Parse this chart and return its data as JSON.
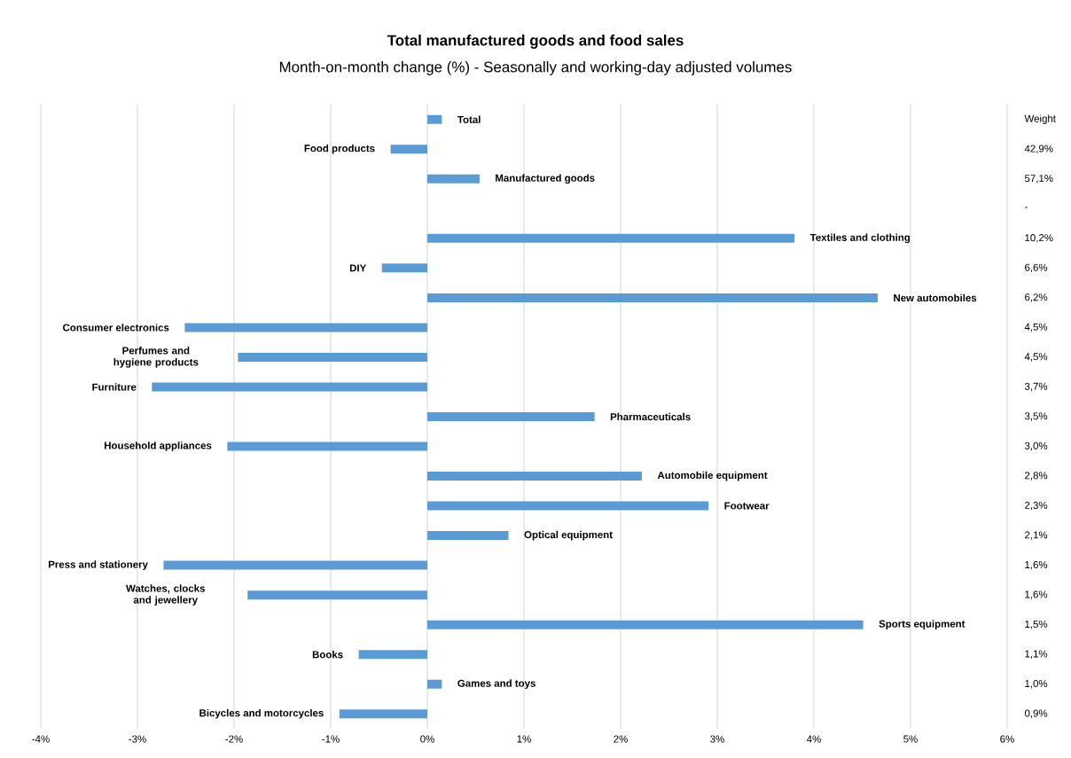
{
  "chart_data": {
    "type": "bar",
    "orientation": "horizontal",
    "title": "Total manufactured goods and food sales",
    "subtitle": "Month-on-month change (%) - Seasonally and working-day adjusted volumes",
    "categories": [
      "Total",
      "Food products",
      "Manufactured  goods",
      null,
      "Textiles and clothing",
      "DIY",
      "New automobiles",
      "Consumer electronics",
      "Perfumes and hygiene products",
      "Furniture",
      "Pharmaceuticals",
      "Household appliances",
      "Automobile  equipment",
      "Footwear",
      "Optical equipment",
      "Press and stationery",
      "Watches, clocks and jewellery",
      "Sports equipment",
      "Books",
      "Games and toys",
      "Bicycles and motorcycles"
    ],
    "values": [
      0.15,
      -0.38,
      0.54,
      null,
      3.8,
      -0.47,
      4.66,
      -2.51,
      -1.96,
      -2.85,
      1.73,
      -2.07,
      2.22,
      2.91,
      0.84,
      -2.73,
      -1.86,
      4.51,
      -0.71,
      0.15,
      -0.91
    ],
    "color": "#5b9bd5",
    "xlim": [
      -4,
      6
    ],
    "xticks": [
      {
        "value": -4,
        "label": "-4%"
      },
      {
        "value": -3,
        "label": "-3%"
      },
      {
        "value": -2,
        "label": "-2%"
      },
      {
        "value": -1,
        "label": "-1%"
      },
      {
        "value": 0,
        "label": "0%"
      },
      {
        "value": 1,
        "label": "1%"
      },
      {
        "value": 2,
        "label": "2%"
      },
      {
        "value": 3,
        "label": "3%"
      },
      {
        "value": 4,
        "label": "4%"
      },
      {
        "value": 5,
        "label": "5%"
      },
      {
        "value": 6,
        "label": "6%"
      }
    ],
    "grid": "x",
    "annotations": [
      "Weight",
      "42,9%",
      "57,1%",
      "-",
      "10,2%",
      "6,6%",
      "6,2%",
      "4,5%",
      "4,5%",
      "3,7%",
      "3,5%",
      "3,0%",
      "2,8%",
      "2,3%",
      "2,1%",
      "1,6%",
      "1,6%",
      "1,5%",
      "1,1%",
      "1,0%",
      "0,9%"
    ]
  }
}
